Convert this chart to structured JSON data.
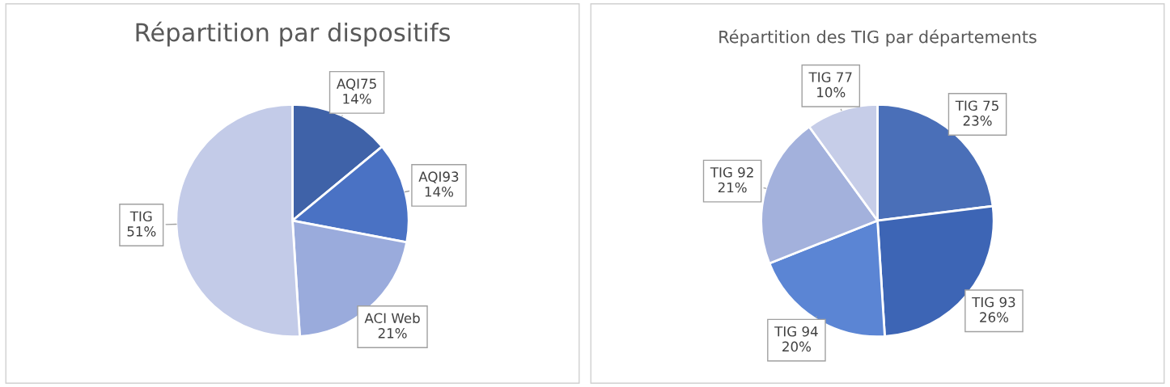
{
  "chart_data": [
    {
      "type": "pie",
      "title": "Répartition par dispositifs",
      "categories": [
        "AQI75",
        "AQI93",
        "ACI Web",
        "TIG"
      ],
      "values": [
        14,
        14,
        21,
        51
      ],
      "value_labels": [
        "14%",
        "14%",
        "21%",
        "51%"
      ],
      "colors": [
        "#3f62a8",
        "#4a72c4",
        "#9aabdc",
        "#c3cbe8"
      ]
    },
    {
      "type": "pie",
      "title": "Répartition des TIG par départements",
      "categories": [
        "TIG 75",
        "TIG 93",
        "TIG 94",
        "TIG 92",
        "TIG 77"
      ],
      "values": [
        23,
        26,
        20,
        21,
        10
      ],
      "value_labels": [
        "23%",
        "26%",
        "20%",
        "21%",
        "10%"
      ],
      "colors": [
        "#4a6fb8",
        "#3d65b5",
        "#5b85d4",
        "#a3b1dc",
        "#c6cde8"
      ]
    }
  ]
}
